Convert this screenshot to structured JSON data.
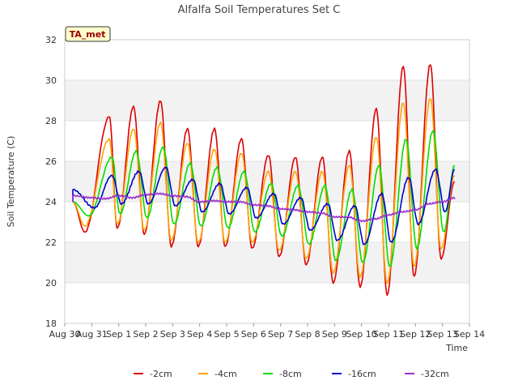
{
  "chart_data": {
    "type": "line",
    "title": "Alfalfa Soil Temperatures Set C",
    "xlabel": "Time",
    "ylabel": "Soil Temperature (C)",
    "ylim": [
      18,
      32
    ],
    "xlim": [
      0,
      15
    ],
    "x_ticks": [
      0,
      1,
      2,
      3,
      4,
      5,
      6,
      7,
      8,
      9,
      10,
      11,
      12,
      13,
      14,
      15
    ],
    "x_tick_labels": [
      "Aug 30",
      "Aug 31",
      "Sep 1",
      "Sep 2",
      "Sep 3",
      "Sep 4",
      "Sep 5",
      "Sep 6",
      "Sep 7",
      "Sep 8",
      "Sep 9",
      "Sep 10",
      "Sep 11",
      "Sep 12",
      "Sep 13",
      "Sep 14"
    ],
    "y_ticks": [
      18,
      20,
      22,
      24,
      26,
      28,
      30,
      32
    ],
    "grid": "horizontal bands",
    "legend_position": "bottom",
    "badge": "TA_met",
    "x_start": 0.3,
    "x_end": 14.45,
    "series": [
      {
        "name": "-2cm",
        "color": "#dd0000",
        "x": [
          0.75,
          1.65,
          1.95,
          2.55,
          2.95,
          3.55,
          3.95,
          4.55,
          4.95,
          5.55,
          5.95,
          6.55,
          6.95,
          7.55,
          7.95,
          8.55,
          8.95,
          9.55,
          9.95,
          10.55,
          10.95,
          11.55,
          11.95,
          12.55,
          12.95,
          13.55,
          13.95
        ],
        "y": [
          22.5,
          28.2,
          22.7,
          28.7,
          22.4,
          29.0,
          21.8,
          27.6,
          21.8,
          27.6,
          21.8,
          27.1,
          21.7,
          26.3,
          21.3,
          26.2,
          20.9,
          26.2,
          20.0,
          26.5,
          19.8,
          28.6,
          19.4,
          30.7,
          20.3,
          30.8,
          21.2
        ],
        "mid": 24.0,
        "y_end": 25.0
      },
      {
        "name": "-4cm",
        "color": "#ffa500",
        "x": [
          0.75,
          1.65,
          1.95,
          2.55,
          2.95,
          3.55,
          3.95,
          4.55,
          4.95,
          5.55,
          5.95,
          6.55,
          6.95,
          7.55,
          7.95,
          8.55,
          8.95,
          9.55,
          9.95,
          10.55,
          10.95,
          11.55,
          11.95,
          12.55,
          12.95,
          13.55,
          13.95
        ],
        "y": [
          22.8,
          27.1,
          22.9,
          27.6,
          22.6,
          27.9,
          22.1,
          26.9,
          22.0,
          26.6,
          22.0,
          26.4,
          22.0,
          25.5,
          21.6,
          25.5,
          21.2,
          25.5,
          20.5,
          25.8,
          20.3,
          27.2,
          20.0,
          28.9,
          20.8,
          29.1,
          21.7
        ],
        "mid": 24.0,
        "y_end": 25.3
      },
      {
        "name": "-8cm",
        "color": "#00dd00",
        "x": [
          0.9,
          1.75,
          2.05,
          2.65,
          3.05,
          3.65,
          4.05,
          4.65,
          5.05,
          5.65,
          6.05,
          6.65,
          7.05,
          7.65,
          8.05,
          8.65,
          9.05,
          9.65,
          10.05,
          10.65,
          11.05,
          11.65,
          12.05,
          12.65,
          13.05,
          13.65,
          14.05
        ],
        "y": [
          23.3,
          26.2,
          23.4,
          26.5,
          23.2,
          26.7,
          22.9,
          25.9,
          22.8,
          25.7,
          22.7,
          25.5,
          22.5,
          24.9,
          22.3,
          24.8,
          21.9,
          24.8,
          21.1,
          24.6,
          21.0,
          25.8,
          20.8,
          27.1,
          21.7,
          27.5,
          22.5
        ],
        "mid": 24.0,
        "y_end": 25.8
      },
      {
        "name": "-16cm",
        "color": "#0000cc",
        "x": [
          0.3,
          1.1,
          1.75,
          2.1,
          2.75,
          3.1,
          3.75,
          4.1,
          4.75,
          5.1,
          5.75,
          6.1,
          6.75,
          7.1,
          7.75,
          8.1,
          8.75,
          9.1,
          9.75,
          10.1,
          10.75,
          11.1,
          11.75,
          12.1,
          12.75,
          13.1,
          13.75,
          14.1
        ],
        "y": [
          24.6,
          23.7,
          25.3,
          23.9,
          25.5,
          23.9,
          25.7,
          23.8,
          25.1,
          23.5,
          24.9,
          23.4,
          24.7,
          23.2,
          24.4,
          22.9,
          24.2,
          22.6,
          23.9,
          22.1,
          23.8,
          21.9,
          24.4,
          22.0,
          25.2,
          22.9,
          25.6,
          23.5
        ],
        "mid": 24.0,
        "y_end": 25.6
      },
      {
        "name": "-32cm",
        "color": "#9933cc",
        "x": [
          0.3,
          1.0,
          1.5,
          2.0,
          2.5,
          3.0,
          3.5,
          4.0,
          4.5,
          5.0,
          5.5,
          6.0,
          6.5,
          7.0,
          7.5,
          8.0,
          8.5,
          9.0,
          9.5,
          10.0,
          10.5,
          11.0,
          11.5,
          12.0,
          12.5,
          13.0,
          13.5,
          14.0,
          14.45
        ],
        "y": [
          24.3,
          24.2,
          24.15,
          24.3,
          24.2,
          24.35,
          24.4,
          24.3,
          24.25,
          24.0,
          24.05,
          24.0,
          24.0,
          23.85,
          23.8,
          23.65,
          23.6,
          23.5,
          23.45,
          23.25,
          23.25,
          23.05,
          23.15,
          23.35,
          23.5,
          23.6,
          23.9,
          24.0,
          24.2
        ],
        "mid": 24.0,
        "y_end": 24.2
      }
    ]
  }
}
